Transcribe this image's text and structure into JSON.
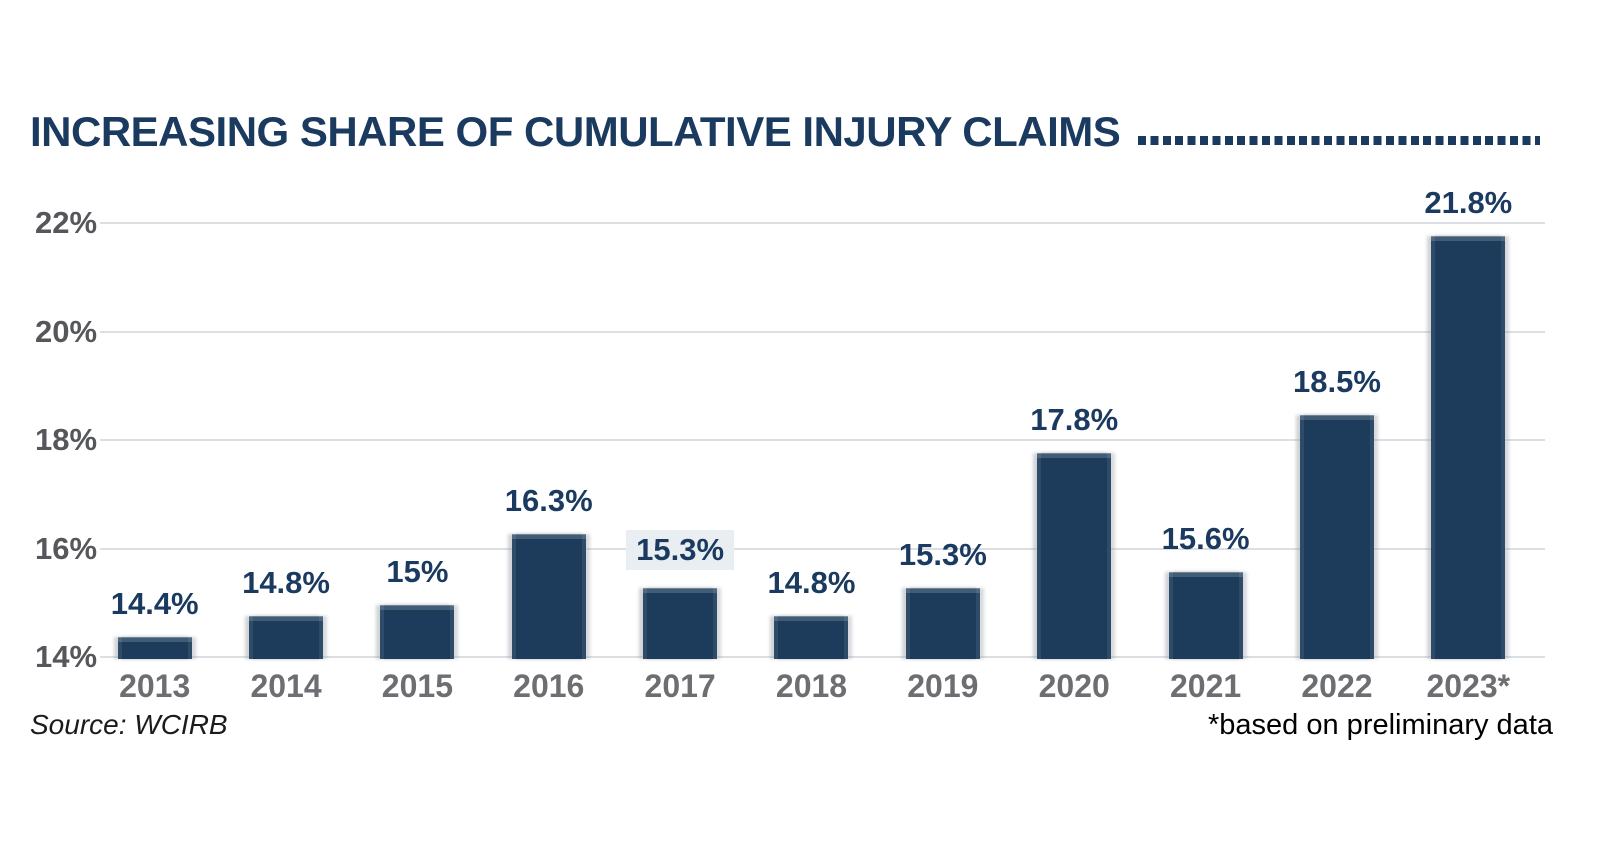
{
  "title": "INCREASING SHARE OF CUMULATIVE INJURY CLAIMS",
  "source": "Source: WCIRB",
  "footnote": "*based on preliminary data",
  "colors": {
    "navy": "#1b3a5f",
    "bar_fill": "#1d3c5b",
    "gridline": "#dbdfe3",
    "y_label_gray": "#56575b",
    "x_label_gray": "#6d6e71",
    "highlight_bg": "#e9eef3"
  },
  "chart_data": {
    "type": "bar",
    "title": "INCREASING SHARE OF CUMULATIVE INJURY CLAIMS",
    "categories": [
      "2013",
      "2014",
      "2015",
      "2016",
      "2017",
      "2018",
      "2019",
      "2020",
      "2021",
      "2022",
      "2023*"
    ],
    "values": [
      14.4,
      14.8,
      15.0,
      16.3,
      15.3,
      14.8,
      15.3,
      17.8,
      15.6,
      18.5,
      21.8
    ],
    "labels": [
      "14.4%",
      "14.8%",
      "15%",
      "16.3%",
      "15.3%",
      "14.8%",
      "15.3%",
      "17.8%",
      "15.6%",
      "18.5%",
      "21.8%"
    ],
    "highlighted_label_index": 4,
    "xlabel": "",
    "ylabel": "",
    "ylim": [
      14,
      22
    ],
    "ytick_step": 2,
    "yticks": [
      "22%",
      "20%",
      "18%",
      "16%",
      "14%"
    ],
    "grid": true,
    "legend": false
  }
}
